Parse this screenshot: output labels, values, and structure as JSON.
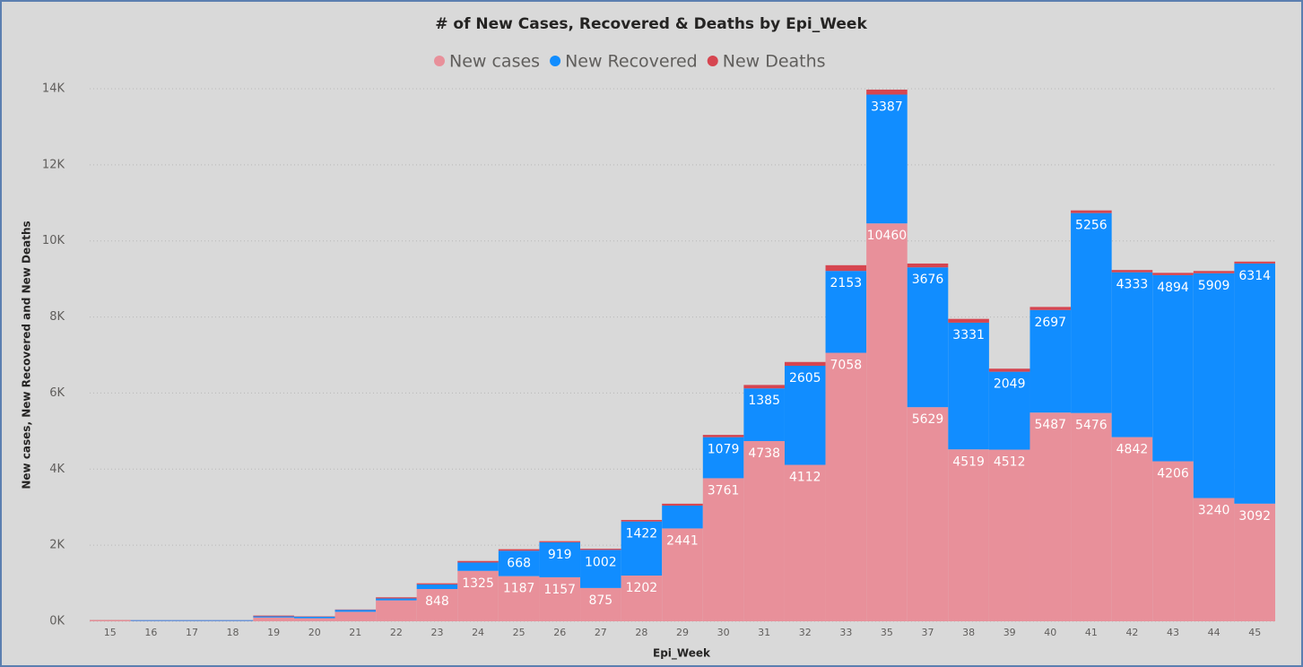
{
  "chart_data": {
    "type": "stacked-bar",
    "title": "# of New Cases, Recovered & Deaths by Epi_Week",
    "x_label": "Epi_Week",
    "y_label": "New cases, New Recovered and New Deaths",
    "categories": [
      "15",
      "16",
      "17",
      "18",
      "19",
      "20",
      "21",
      "22",
      "23",
      "24",
      "25",
      "26",
      "27",
      "28",
      "29",
      "30",
      "31",
      "32",
      "33",
      "35",
      "37",
      "38",
      "39",
      "40",
      "41",
      "42",
      "43",
      "44",
      "45"
    ],
    "series": [
      {
        "name": "New cases",
        "color": "#e8909a",
        "values": [
          20,
          10,
          10,
          10,
          100,
          80,
          250,
          550,
          848,
          1325,
          1187,
          1157,
          875,
          1202,
          2441,
          3761,
          4738,
          4112,
          7058,
          10460,
          5629,
          4519,
          4512,
          5487,
          5476,
          4842,
          4206,
          3240,
          3092
        ]
      },
      {
        "name": "New Recovered",
        "color": "#118dff",
        "values": [
          0,
          20,
          20,
          20,
          30,
          40,
          50,
          50,
          120,
          220,
          668,
          919,
          1002,
          1422,
          600,
          1079,
          1385,
          2605,
          2153,
          3387,
          3676,
          3331,
          2049,
          2697,
          5256,
          4333,
          4894,
          5909,
          6314
        ]
      },
      {
        "name": "New Deaths",
        "color": "#d64550",
        "values": [
          10,
          2,
          2,
          2,
          20,
          10,
          10,
          30,
          30,
          40,
          40,
          30,
          30,
          40,
          50,
          60,
          90,
          100,
          150,
          130,
          100,
          100,
          80,
          80,
          70,
          60,
          60,
          60,
          50
        ]
      }
    ],
    "ylim": [
      0,
      14000
    ],
    "yticks": [
      {
        "value": 0,
        "label": "0K"
      },
      {
        "value": 2000,
        "label": "2K"
      },
      {
        "value": 4000,
        "label": "4K"
      },
      {
        "value": 6000,
        "label": "6K"
      },
      {
        "value": 8000,
        "label": "8K"
      },
      {
        "value": 10000,
        "label": "10K"
      },
      {
        "value": 12000,
        "label": "12K"
      },
      {
        "value": 14000,
        "label": "14K"
      }
    ],
    "grid": true,
    "legend": "top"
  }
}
